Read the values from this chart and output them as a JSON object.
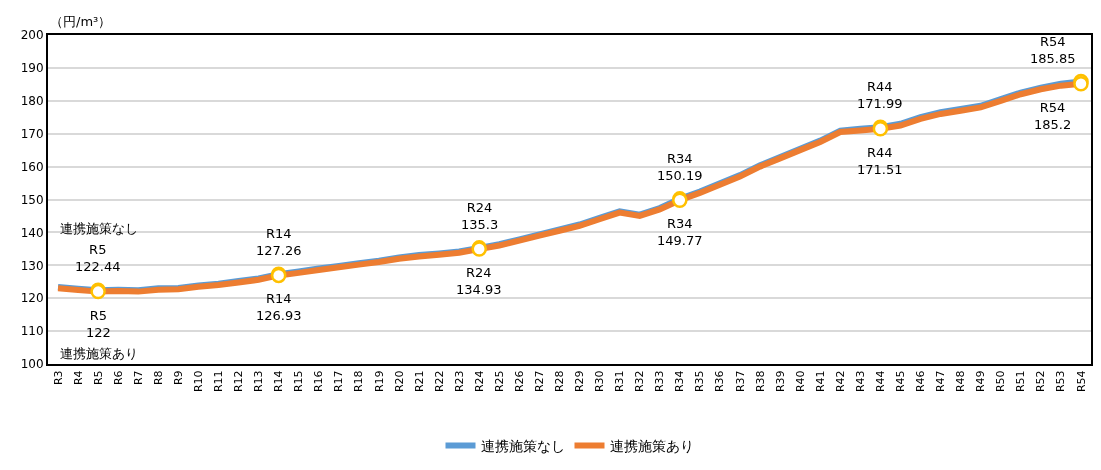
{
  "chart_data": {
    "type": "line",
    "ylabel": "（円/m³）",
    "categories": [
      "R3",
      "R4",
      "R5",
      "R6",
      "R7",
      "R8",
      "R9",
      "R10",
      "R11",
      "R12",
      "R13",
      "R14",
      "R15",
      "R16",
      "R17",
      "R18",
      "R19",
      "R20",
      "R21",
      "R22",
      "R23",
      "R24",
      "R25",
      "R26",
      "R27",
      "R28",
      "R29",
      "R30",
      "R31",
      "R32",
      "R33",
      "R34",
      "R35",
      "R36",
      "R37",
      "R38",
      "R39",
      "R40",
      "R41",
      "R42",
      "R43",
      "R44",
      "R45",
      "R46",
      "R47",
      "R48",
      "R49",
      "R50",
      "R51",
      "R52",
      "R53",
      "R54"
    ],
    "series": [
      {
        "name": "連携施策なし",
        "color": "#5b9bd5",
        "values": [
          123.4,
          122.9,
          122.44,
          122.6,
          122.4,
          123,
          123.1,
          123.9,
          124.4,
          125.2,
          126,
          127.26,
          128.1,
          129,
          129.8,
          130.6,
          131.4,
          132.4,
          133.1,
          133.6,
          134.2,
          135.3,
          136.4,
          137.9,
          139.4,
          140.9,
          142.4,
          144.4,
          146.4,
          145.4,
          147.4,
          150.19,
          152.4,
          154.9,
          157.4,
          160.4,
          162.9,
          165.4,
          167.9,
          170.9,
          171.5,
          171.99,
          173,
          175,
          176.5,
          177.5,
          178.5,
          180.5,
          182.5,
          184,
          185.2,
          185.85
        ],
        "value_labels": [
          null,
          null,
          "R5\n122.44",
          null,
          null,
          null,
          null,
          null,
          null,
          null,
          null,
          "R14\n127.26",
          null,
          null,
          null,
          null,
          null,
          null,
          null,
          null,
          null,
          "R24\n135.3",
          null,
          null,
          null,
          null,
          null,
          null,
          null,
          null,
          null,
          "R34\n150.19",
          null,
          null,
          null,
          null,
          null,
          null,
          null,
          null,
          null,
          "R44\n171.99",
          null,
          null,
          null,
          null,
          null,
          null,
          null,
          null,
          null,
          "R54\n185.85"
        ]
      },
      {
        "name": "連携施策あり",
        "color": "#ed7d31",
        "values": [
          123,
          122.5,
          122,
          122.2,
          122,
          122.6,
          122.7,
          123.5,
          124,
          124.8,
          125.6,
          126.93,
          127.7,
          128.6,
          129.4,
          130.2,
          131,
          132,
          132.7,
          133.2,
          133.8,
          134.93,
          136,
          137.5,
          139,
          140.5,
          142,
          144,
          146,
          145,
          147,
          149.77,
          152,
          154.5,
          157,
          160,
          162.5,
          165,
          167.5,
          170.5,
          171,
          171.51,
          172.5,
          174.5,
          176,
          177,
          178,
          180,
          182,
          183.5,
          184.6,
          185.2
        ],
        "value_labels": [
          null,
          null,
          "R5\n122",
          null,
          null,
          null,
          null,
          null,
          null,
          null,
          null,
          "R14\n126.93",
          null,
          null,
          null,
          null,
          null,
          null,
          null,
          null,
          null,
          "R24\n134.93",
          null,
          null,
          null,
          null,
          null,
          null,
          null,
          null,
          null,
          "R34\n149.77",
          null,
          null,
          null,
          null,
          null,
          null,
          null,
          null,
          null,
          "R44\n171.51",
          null,
          null,
          null,
          null,
          null,
          null,
          null,
          null,
          null,
          "R54\n185.2"
        ]
      }
    ],
    "annotations": [
      "連携施策なし",
      "連携施策あり"
    ],
    "ylim": [
      100,
      200
    ],
    "yticks": [
      100,
      110,
      120,
      130,
      140,
      150,
      160,
      170,
      180,
      190,
      200
    ],
    "grid": "y",
    "legend": "bottom",
    "line_style": "solid"
  }
}
